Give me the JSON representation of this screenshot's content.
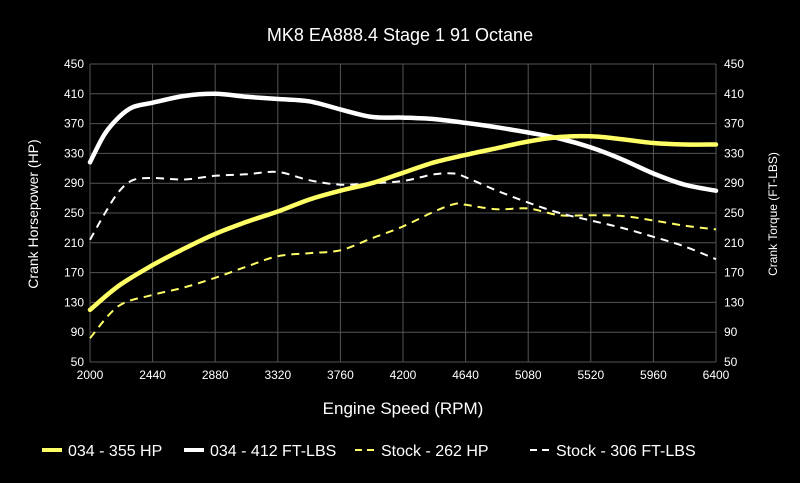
{
  "chart_data": {
    "type": "line",
    "title": "MK8 EA888.4 Stage 1 91 Octane",
    "xlabel": "Engine Speed (RPM)",
    "ylabel": "Crank Horsepower (HP)",
    "y2label": "Crank Torque (FT-LBS)",
    "xlim": [
      2000,
      6400
    ],
    "ylim": [
      50,
      450
    ],
    "y2lim": [
      50,
      450
    ],
    "x_ticks": [
      2000,
      2440,
      2880,
      3320,
      3760,
      4200,
      4640,
      5080,
      5520,
      5960,
      6400
    ],
    "y_ticks": [
      50,
      90,
      130,
      170,
      210,
      250,
      290,
      330,
      370,
      410,
      450
    ],
    "y2_ticks": [
      50,
      90,
      130,
      170,
      210,
      250,
      290,
      330,
      370,
      410,
      450
    ],
    "grid": true,
    "legend_position": "bottom",
    "series": [
      {
        "name": "034 - 355 HP",
        "color": "#ffff66",
        "style": "solid",
        "axis": "left",
        "x": [
          2000,
          2200,
          2440,
          2660,
          2880,
          3100,
          3320,
          3540,
          3760,
          3980,
          4200,
          4420,
          4640,
          4860,
          5080,
          5300,
          5520,
          5740,
          5960,
          6180,
          6400
        ],
        "y": [
          120,
          152,
          180,
          202,
          222,
          238,
          252,
          268,
          280,
          290,
          304,
          318,
          328,
          337,
          346,
          352,
          353,
          349,
          344,
          342,
          342
        ]
      },
      {
        "name": "034 - 412 FT-LBS",
        "color": "#ffffff",
        "style": "solid",
        "axis": "right",
        "x": [
          2000,
          2100,
          2200,
          2300,
          2440,
          2660,
          2880,
          3100,
          3320,
          3540,
          3760,
          3980,
          4200,
          4420,
          4640,
          4860,
          5080,
          5300,
          5520,
          5740,
          5960,
          6180,
          6400
        ],
        "y": [
          318,
          355,
          378,
          392,
          398,
          407,
          410,
          406,
          403,
          400,
          389,
          379,
          378,
          376,
          371,
          365,
          358,
          350,
          338,
          322,
          303,
          288,
          280
        ]
      },
      {
        "name": "Stock - 262 HP",
        "color": "#ffff66",
        "style": "dashed",
        "axis": "left",
        "x": [
          2000,
          2200,
          2440,
          2660,
          2880,
          3100,
          3320,
          3540,
          3760,
          3980,
          4200,
          4420,
          4560,
          4640,
          4860,
          5080,
          5300,
          5520,
          5740,
          5960,
          6180,
          6400
        ],
        "y": [
          82,
          125,
          140,
          150,
          163,
          178,
          192,
          196,
          200,
          216,
          232,
          252,
          262,
          261,
          255,
          256,
          247,
          247,
          246,
          240,
          233,
          228
        ]
      },
      {
        "name": "Stock - 306 FT-LBS",
        "color": "#ffffff",
        "style": "dashed",
        "axis": "right",
        "x": [
          2000,
          2100,
          2200,
          2300,
          2440,
          2660,
          2880,
          3100,
          3320,
          3540,
          3760,
          3980,
          4200,
          4420,
          4560,
          4640,
          4860,
          5080,
          5300,
          5520,
          5740,
          5960,
          6180,
          6400
        ],
        "y": [
          214,
          248,
          278,
          294,
          297,
          295,
          300,
          302,
          305,
          294,
          288,
          290,
          293,
          302,
          303,
          298,
          280,
          264,
          250,
          240,
          230,
          218,
          205,
          188
        ]
      }
    ]
  }
}
